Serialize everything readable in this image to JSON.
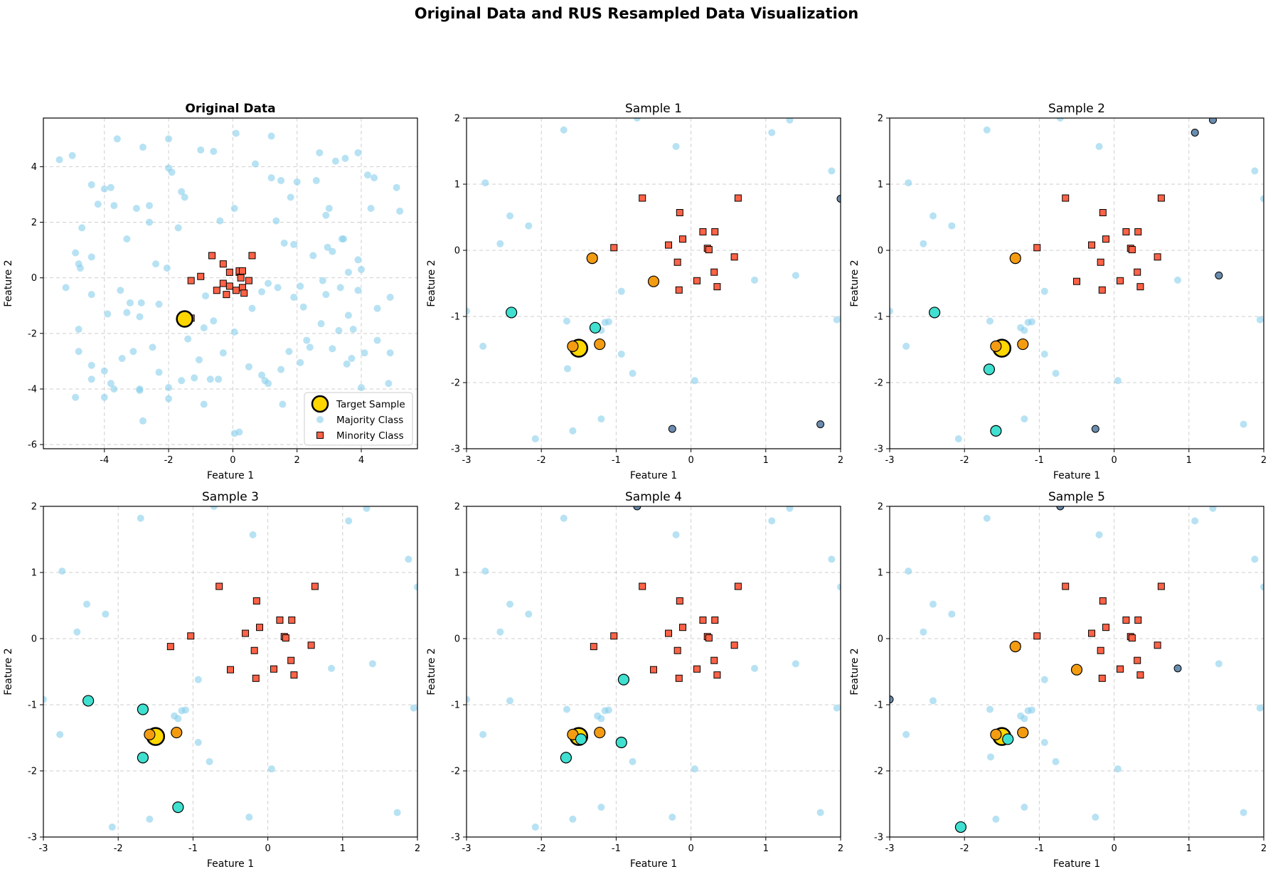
{
  "figure": {
    "title": "Original Data and RUS Resampled Data Visualization"
  },
  "colors": {
    "majority": "#87ceeb",
    "minority": "#ff6347",
    "target": "#ffd700",
    "selected_majority": "#6a8caf",
    "neighbor_orange": "#f39c12",
    "neighbor_teal": "#40e0d0"
  },
  "legend": {
    "target": "Target Sample",
    "majority": "Majority Class",
    "minority": "Minority Class",
    "placement": "lower-right"
  },
  "chart_data": [
    {
      "type": "scatter",
      "title": "Original Data",
      "xlabel": "Feature 1",
      "ylabel": "Feature 2",
      "xlim": [
        -5.9,
        5.75
      ],
      "ylim": [
        -6.15,
        5.75
      ],
      "xticks": [
        "-4",
        "-2",
        "0",
        "2",
        "4"
      ],
      "yticks": [
        "-6",
        "-4",
        "-2",
        "0",
        "2",
        "4"
      ],
      "grid": true,
      "majority": [
        [
          -5.4,
          4.25
        ],
        [
          -5.0,
          4.4
        ],
        [
          -4.7,
          1.8
        ],
        [
          -4.4,
          3.35
        ],
        [
          -4.0,
          3.2
        ],
        [
          -3.8,
          3.25
        ],
        [
          -3.6,
          5.0
        ],
        [
          -3.3,
          1.4
        ],
        [
          -3.0,
          2.5
        ],
        [
          -2.8,
          4.7
        ],
        [
          -2.6,
          2.6
        ],
        [
          -2.0,
          5.0
        ],
        [
          -2.0,
          3.95
        ],
        [
          -1.9,
          3.8
        ],
        [
          -1.5,
          2.9
        ],
        [
          -1.7,
          1.8
        ],
        [
          -1.0,
          4.6
        ],
        [
          -0.6,
          4.55
        ],
        [
          0.1,
          5.2
        ],
        [
          0.7,
          4.1
        ],
        [
          1.2,
          5.1
        ],
        [
          1.5,
          3.5
        ],
        [
          1.8,
          2.9
        ],
        [
          2.0,
          3.45
        ],
        [
          2.6,
          3.5
        ],
        [
          2.7,
          4.5
        ],
        [
          3.0,
          2.5
        ],
        [
          3.2,
          4.2
        ],
        [
          3.5,
          4.3
        ],
        [
          3.9,
          4.5
        ],
        [
          4.2,
          3.7
        ],
        [
          4.4,
          3.6
        ],
        [
          5.1,
          3.25
        ],
        [
          5.2,
          2.4
        ],
        [
          4.3,
          2.5
        ],
        [
          3.45,
          1.4
        ],
        [
          2.9,
          2.25
        ],
        [
          1.35,
          2.05
        ],
        [
          0.05,
          2.5
        ],
        [
          -0.4,
          2.05
        ],
        [
          -1.6,
          3.1
        ],
        [
          -2.6,
          2.0
        ],
        [
          -3.7,
          2.6
        ],
        [
          -4.2,
          2.65
        ],
        [
          -4.9,
          0.9
        ],
        [
          -4.8,
          0.5
        ],
        [
          -4.4,
          0.75
        ],
        [
          -5.2,
          -0.35
        ],
        [
          -4.75,
          0.35
        ],
        [
          -4.4,
          -0.6
        ],
        [
          -3.5,
          -0.45
        ],
        [
          -3.2,
          -0.9
        ],
        [
          -2.85,
          -0.9
        ],
        [
          -2.4,
          0.5
        ],
        [
          -2.3,
          -0.95
        ],
        [
          -2.05,
          0.35
        ],
        [
          -0.85,
          -0.65
        ],
        [
          0.9,
          -0.5
        ],
        [
          1.4,
          -0.35
        ],
        [
          2.1,
          -0.3
        ],
        [
          2.5,
          0.8
        ],
        [
          3.1,
          0.95
        ],
        [
          3.4,
          1.4
        ],
        [
          3.9,
          0.65
        ],
        [
          4.0,
          0.3
        ],
        [
          4.5,
          -1.1
        ],
        [
          3.9,
          -0.45
        ],
        [
          3.35,
          -0.35
        ],
        [
          2.9,
          -0.6
        ],
        [
          2.2,
          -1.05
        ],
        [
          1.9,
          -0.7
        ],
        [
          -4.8,
          -1.85
        ],
        [
          -4.8,
          -2.65
        ],
        [
          -4.4,
          -3.15
        ],
        [
          -4.4,
          -3.65
        ],
        [
          -4.0,
          -3.35
        ],
        [
          -4.0,
          -4.3
        ],
        [
          -3.7,
          -4.0
        ],
        [
          -3.45,
          -2.9
        ],
        [
          -3.1,
          -2.65
        ],
        [
          -2.9,
          -4.05
        ],
        [
          -2.8,
          -5.15
        ],
        [
          -2.3,
          -3.4
        ],
        [
          -2.0,
          -4.35
        ],
        [
          -1.6,
          -3.7
        ],
        [
          -1.4,
          -2.2
        ],
        [
          -1.05,
          -2.95
        ],
        [
          -0.9,
          -4.55
        ],
        [
          -0.7,
          -3.65
        ],
        [
          -0.45,
          -3.65
        ],
        [
          -0.3,
          -2.7
        ],
        [
          0.05,
          -1.95
        ],
        [
          0.5,
          -3.2
        ],
        [
          0.9,
          -3.5
        ],
        [
          1.1,
          -3.8
        ],
        [
          1.5,
          -3.3
        ],
        [
          1.55,
          -4.55
        ],
        [
          1.75,
          -2.65
        ],
        [
          2.1,
          -3.05
        ],
        [
          2.3,
          -2.25
        ],
        [
          2.4,
          -2.5
        ],
        [
          2.75,
          -1.65
        ],
        [
          3.1,
          -2.55
        ],
        [
          3.3,
          -1.9
        ],
        [
          3.6,
          -1.35
        ],
        [
          3.7,
          -2.9
        ],
        [
          3.75,
          -1.85
        ],
        [
          4.0,
          -3.95
        ],
        [
          4.1,
          -2.7
        ],
        [
          4.5,
          -2.25
        ],
        [
          4.9,
          -2.7
        ],
        [
          4.85,
          -3.8
        ],
        [
          0.05,
          -5.6
        ],
        [
          0.2,
          -5.55
        ],
        [
          -2.9,
          -4.0
        ],
        [
          -2.0,
          -3.95
        ],
        [
          1.0,
          -3.7
        ],
        [
          3.55,
          -3.1
        ],
        [
          2.8,
          -0.1
        ],
        [
          -3.8,
          -3.8
        ],
        [
          -4.9,
          -4.3
        ],
        [
          -1.2,
          -3.6
        ],
        [
          -2.5,
          -2.5
        ],
        [
          -0.9,
          -1.8
        ],
        [
          1.6,
          1.25
        ],
        [
          1.2,
          3.6
        ],
        [
          2.95,
          1.1
        ],
        [
          3.6,
          0.2
        ],
        [
          4.9,
          -0.7
        ],
        [
          1.1,
          -0.2
        ],
        [
          -3.9,
          -1.3
        ],
        [
          -3.3,
          -1.25
        ],
        [
          -2.9,
          -1.4
        ],
        [
          -0.6,
          -1.55
        ],
        [
          0.6,
          -1.1
        ],
        [
          1.9,
          1.2
        ]
      ],
      "minority": [
        [
          -1.5,
          -1.45
        ],
        [
          -1.3,
          -1.45
        ],
        [
          -1.3,
          -0.1
        ],
        [
          -1.0,
          0.05
        ],
        [
          -0.65,
          0.8
        ],
        [
          -0.5,
          -0.45
        ],
        [
          -0.3,
          -0.2
        ],
        [
          -0.3,
          0.5
        ],
        [
          -0.1,
          0.2
        ],
        [
          0.1,
          -0.45
        ],
        [
          0.2,
          0.2
        ],
        [
          0.25,
          0.0
        ],
        [
          0.3,
          -0.35
        ],
        [
          0.35,
          -0.55
        ],
        [
          0.5,
          -0.1
        ],
        [
          0.6,
          0.8
        ],
        [
          -0.2,
          -0.6
        ],
        [
          0.2,
          0.25
        ],
        [
          0.3,
          0.25
        ],
        [
          -0.1,
          -0.3
        ]
      ],
      "target": [
        -1.5,
        -1.48
      ]
    },
    {
      "type": "scatter",
      "title": "Sample 1",
      "xlabel": "Feature 1",
      "ylabel": "Feature 2",
      "xlim": [
        -3,
        2
      ],
      "ylim": [
        -3,
        2
      ],
      "grid": true,
      "selected_majority": [
        [
          -0.25,
          -2.7
        ],
        [
          1.73,
          -2.63
        ],
        [
          2.0,
          0.78
        ]
      ],
      "neighbors_orange": [
        [
          -1.32,
          -0.12
        ],
        [
          -0.5,
          -0.47
        ],
        [
          -1.22,
          -1.42
        ],
        [
          -1.58,
          -1.45
        ]
      ],
      "neighbors_teal": [
        [
          -2.4,
          -0.94
        ],
        [
          -1.28,
          -1.17
        ]
      ]
    },
    {
      "type": "scatter",
      "title": "Sample 2",
      "xlabel": "Feature 1",
      "ylabel": "Feature 2",
      "xlim": [
        -3,
        2
      ],
      "ylim": [
        -3,
        2
      ],
      "grid": true,
      "selected_majority": [
        [
          -0.25,
          -2.7
        ],
        [
          1.08,
          1.78
        ],
        [
          1.32,
          1.97
        ],
        [
          1.4,
          -0.38
        ]
      ],
      "neighbors_orange": [
        [
          -1.32,
          -0.12
        ],
        [
          -1.22,
          -1.42
        ],
        [
          -1.58,
          -1.45
        ]
      ],
      "neighbors_teal": [
        [
          -2.4,
          -0.94
        ],
        [
          -1.67,
          -1.8
        ],
        [
          -1.58,
          -2.73
        ]
      ]
    },
    {
      "type": "scatter",
      "title": "Sample 3",
      "xlabel": "Feature 1",
      "ylabel": "Feature 2",
      "xlim": [
        -3,
        2
      ],
      "ylim": [
        -3,
        2
      ],
      "grid": true,
      "selected_majority": [],
      "neighbors_orange": [
        [
          -1.22,
          -1.42
        ],
        [
          -1.58,
          -1.45
        ]
      ],
      "neighbors_teal": [
        [
          -2.4,
          -0.94
        ],
        [
          -1.67,
          -1.07
        ],
        [
          -1.67,
          -1.8
        ],
        [
          -1.2,
          -2.55
        ]
      ]
    },
    {
      "type": "scatter",
      "title": "Sample 4",
      "xlabel": "Feature 1",
      "ylabel": "Feature 2",
      "xlim": [
        -3,
        2
      ],
      "ylim": [
        -3,
        2
      ],
      "grid": true,
      "selected_majority": [
        [
          -0.72,
          2.0
        ]
      ],
      "neighbors_orange": [
        [
          -1.22,
          -1.42
        ],
        [
          -1.58,
          -1.45
        ]
      ],
      "neighbors_teal": [
        [
          -0.9,
          -0.62
        ],
        [
          -1.47,
          -1.52
        ],
        [
          -0.93,
          -1.57
        ],
        [
          -1.67,
          -1.8
        ]
      ]
    },
    {
      "type": "scatter",
      "title": "Sample 5",
      "xlabel": "Feature 1",
      "ylabel": "Feature 2",
      "xlim": [
        -3,
        2
      ],
      "ylim": [
        -3,
        2
      ],
      "grid": true,
      "selected_majority": [
        [
          -3.0,
          -0.92
        ],
        [
          0.85,
          -0.45
        ],
        [
          -0.72,
          2.0
        ]
      ],
      "neighbors_orange": [
        [
          -1.32,
          -0.12
        ],
        [
          -0.5,
          -0.47
        ],
        [
          -1.22,
          -1.42
        ],
        [
          -1.58,
          -1.45
        ]
      ],
      "neighbors_teal": [
        [
          -1.42,
          -1.52
        ],
        [
          -2.05,
          -2.85
        ]
      ]
    }
  ],
  "zoom_background": {
    "majority": [
      [
        -2.75,
        1.02
      ],
      [
        -3.0,
        -0.92
      ],
      [
        -2.78,
        -1.45
      ],
      [
        -2.42,
        0.52
      ],
      [
        -2.55,
        0.1
      ],
      [
        -2.17,
        0.37
      ],
      [
        -2.42,
        -0.94
      ],
      [
        -1.7,
        1.82
      ],
      [
        -1.66,
        -1.07
      ],
      [
        -1.65,
        -1.79
      ],
      [
        -1.58,
        -2.73
      ],
      [
        -2.08,
        -2.85
      ],
      [
        -1.25,
        -1.17
      ],
      [
        -1.2,
        -1.21
      ],
      [
        -1.15,
        -1.09
      ],
      [
        -1.1,
        -1.08
      ],
      [
        -0.93,
        -0.62
      ],
      [
        -0.93,
        -1.57
      ],
      [
        -0.78,
        -1.86
      ],
      [
        -0.2,
        1.57
      ],
      [
        -0.25,
        -2.7
      ],
      [
        0.05,
        -1.97
      ],
      [
        0.85,
        -0.45
      ],
      [
        1.08,
        1.78
      ],
      [
        1.32,
        1.97
      ],
      [
        1.4,
        -0.38
      ],
      [
        1.88,
        1.2
      ],
      [
        1.95,
        -1.05
      ],
      [
        1.73,
        -2.63
      ],
      [
        -1.2,
        -2.55
      ],
      [
        -1.5,
        -1.5
      ],
      [
        2.0,
        0.78
      ],
      [
        -0.72,
        2.0
      ]
    ],
    "minority": [
      [
        -1.3,
        -0.12
      ],
      [
        -1.03,
        0.04
      ],
      [
        -0.65,
        0.79
      ],
      [
        -0.5,
        -0.47
      ],
      [
        -0.3,
        0.08
      ],
      [
        -0.18,
        -0.18
      ],
      [
        -0.16,
        -0.6
      ],
      [
        -0.15,
        0.57
      ],
      [
        -0.11,
        0.17
      ],
      [
        0.08,
        -0.46
      ],
      [
        0.16,
        0.28
      ],
      [
        0.22,
        0.03
      ],
      [
        0.24,
        0.01
      ],
      [
        0.32,
        0.28
      ],
      [
        0.31,
        -0.33
      ],
      [
        0.35,
        -0.55
      ],
      [
        0.58,
        -0.1
      ],
      [
        0.63,
        0.79
      ]
    ],
    "target": [
      -1.5,
      -1.48
    ]
  }
}
